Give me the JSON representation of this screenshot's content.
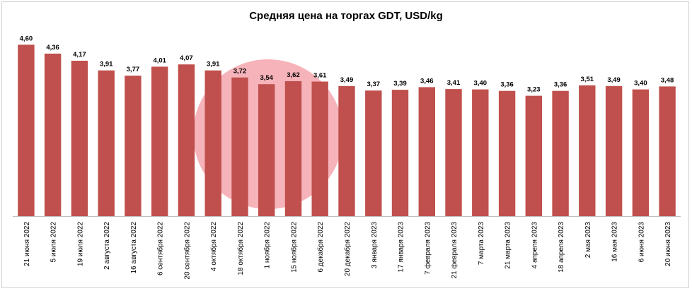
{
  "chart_data": {
    "type": "bar",
    "title": "Средняя цена на торгах GDT, USD/kg",
    "xlabel": "",
    "ylabel": "",
    "ylim": [
      0,
      4.7
    ],
    "grid": false,
    "categories": [
      "21 июня 2022",
      "5 июля 2022",
      "19 июля 2022",
      "2 августа 2022",
      "16 августа 2022",
      "6 сентября 2022",
      "20 сентября 2022",
      "4 октября 2022",
      "18 октября 2022",
      "1 ноября 2022",
      "15 ноября 2022",
      "6 декабря 2022",
      "20 декабря 2022",
      "3 января 2023",
      "17 января 2023",
      "7 февраля 2023",
      "21 февраля 2023",
      "7 марта 2023",
      "21 марта 2023",
      "4 апреля 2023",
      "18 апреля 2023",
      "2 мая 2023",
      "16 мая 2023",
      "6 июня 2023",
      "20 июня 2023"
    ],
    "values": [
      4.6,
      4.36,
      4.17,
      3.91,
      3.77,
      4.01,
      4.07,
      3.91,
      3.72,
      3.54,
      3.62,
      3.61,
      3.49,
      3.37,
      3.39,
      3.46,
      3.41,
      3.4,
      3.36,
      3.23,
      3.36,
      3.51,
      3.49,
      3.4,
      3.48
    ],
    "value_labels": [
      "4,60",
      "4,36",
      "4,17",
      "3,91",
      "3,77",
      "4,01",
      "4,07",
      "3,91",
      "3,72",
      "3,54",
      "3,62",
      "3,61",
      "3,49",
      "3,37",
      "3,39",
      "3,46",
      "3,41",
      "3,40",
      "3,36",
      "3,23",
      "3,36",
      "3,51",
      "3,49",
      "3,40",
      "3,48"
    ],
    "bar_color": "#c0504d",
    "watermark_color": "#f4a6ad"
  }
}
